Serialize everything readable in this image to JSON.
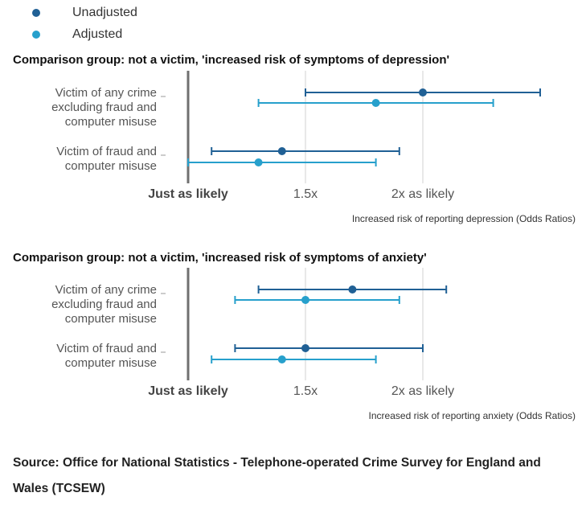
{
  "legend": {
    "unadjusted": {
      "label": "Unadjusted",
      "color": "#206095"
    },
    "adjusted": {
      "label": "Adjusted",
      "color": "#27a0cc"
    }
  },
  "chart_data": [
    {
      "type": "dot-errorbar",
      "title": "Comparison group: not a victim, 'increased risk of symptoms of depression'",
      "xlabel": "Increased risk of reporting depression (Odds Ratios)",
      "xlim": [
        0.9,
        2.5
      ],
      "ticks": [
        {
          "value": 1.0,
          "label": "Just as likely",
          "reference": true
        },
        {
          "value": 1.5,
          "label": "1.5x"
        },
        {
          "value": 2.0,
          "label": "2x as likely"
        }
      ],
      "categories": [
        {
          "label": [
            "Victim of any crime",
            "excluding fraud and",
            "computer misuse"
          ],
          "unadjusted": {
            "value": 2.0,
            "low": 1.5,
            "high": 2.5
          },
          "adjusted": {
            "value": 1.8,
            "low": 1.3,
            "high": 2.3
          }
        },
        {
          "label": [
            "Victim of fraud and",
            "computer misuse"
          ],
          "unadjusted": {
            "value": 1.4,
            "low": 1.1,
            "high": 1.9
          },
          "adjusted": {
            "value": 1.3,
            "low": 1.0,
            "high": 1.8
          }
        }
      ]
    },
    {
      "type": "dot-errorbar",
      "title": "Comparison group: not a victim, 'increased risk of symptoms of anxiety'",
      "xlabel": "Increased risk of reporting anxiety (Odds Ratios)",
      "xlim": [
        0.9,
        2.5
      ],
      "ticks": [
        {
          "value": 1.0,
          "label": "Just as likely",
          "reference": true
        },
        {
          "value": 1.5,
          "label": "1.5x"
        },
        {
          "value": 2.0,
          "label": "2x as likely"
        }
      ],
      "categories": [
        {
          "label": [
            "Victim of any crime",
            "excluding fraud and",
            "computer misuse"
          ],
          "unadjusted": {
            "value": 1.7,
            "low": 1.3,
            "high": 2.1
          },
          "adjusted": {
            "value": 1.5,
            "low": 1.2,
            "high": 1.9
          }
        },
        {
          "label": [
            "Victim of fraud and",
            "computer misuse"
          ],
          "unadjusted": {
            "value": 1.5,
            "low": 1.2,
            "high": 2.0
          },
          "adjusted": {
            "value": 1.4,
            "low": 1.1,
            "high": 1.8
          }
        }
      ]
    }
  ],
  "source": "Source: Office for National Statistics - Telephone-operated Crime Survey for England and Wales (TCSEW)"
}
